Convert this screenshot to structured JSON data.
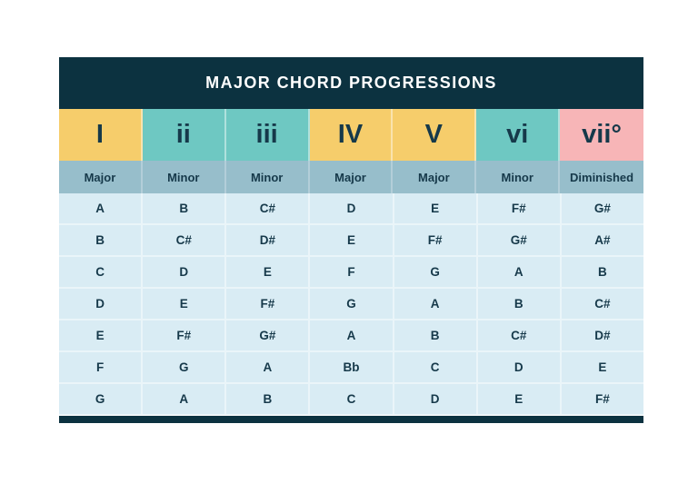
{
  "header": {
    "title": "MAJOR CHORD PROGRESSIONS"
  },
  "colors": {
    "navy": "#0c3240",
    "text": "#16394a",
    "title_text": "#ffffff",
    "yellow": "#f6cd6b",
    "teal": "#6ec8c2",
    "pink": "#f7b5b7",
    "quality_bg": "#97becb",
    "quality_gap": "#b3ced9",
    "cell_bg": "#d9ecf4",
    "cell_gap": "#eaf5f9"
  },
  "columns": [
    {
      "numeral": "I",
      "quality": "Major",
      "color_key": "yellow"
    },
    {
      "numeral": "ii",
      "quality": "Minor",
      "color_key": "teal"
    },
    {
      "numeral": "iii",
      "quality": "Minor",
      "color_key": "teal"
    },
    {
      "numeral": "IV",
      "quality": "Major",
      "color_key": "yellow"
    },
    {
      "numeral": "V",
      "quality": "Major",
      "color_key": "yellow"
    },
    {
      "numeral": "vi",
      "quality": "Minor",
      "color_key": "teal"
    },
    {
      "numeral": "vii°",
      "quality": "Diminished",
      "color_key": "pink"
    }
  ],
  "rows": [
    [
      "A",
      "B",
      "C#",
      "D",
      "E",
      "F#",
      "G#"
    ],
    [
      "B",
      "C#",
      "D#",
      "E",
      "F#",
      "G#",
      "A#"
    ],
    [
      "C",
      "D",
      "E",
      "F",
      "G",
      "A",
      "B"
    ],
    [
      "D",
      "E",
      "F#",
      "G",
      "A",
      "B",
      "C#"
    ],
    [
      "E",
      "F#",
      "G#",
      "A",
      "B",
      "C#",
      "D#"
    ],
    [
      "F",
      "G",
      "A",
      "Bb",
      "C",
      "D",
      "E"
    ],
    [
      "G",
      "A",
      "B",
      "C",
      "D",
      "E",
      "F#"
    ]
  ],
  "chart_data": {
    "type": "table",
    "title": "MAJOR CHORD PROGRESSIONS",
    "columns": [
      "I",
      "ii",
      "iii",
      "IV",
      "V",
      "vi",
      "vii°"
    ],
    "qualities": [
      "Major",
      "Minor",
      "Minor",
      "Major",
      "Major",
      "Minor",
      "Diminished"
    ],
    "rows": [
      [
        "A",
        "B",
        "C#",
        "D",
        "E",
        "F#",
        "G#"
      ],
      [
        "B",
        "C#",
        "D#",
        "E",
        "F#",
        "G#",
        "A#"
      ],
      [
        "C",
        "D",
        "E",
        "F",
        "G",
        "A",
        "B"
      ],
      [
        "D",
        "E",
        "F#",
        "G",
        "A",
        "B",
        "C#"
      ],
      [
        "E",
        "F#",
        "G#",
        "A",
        "B",
        "C#",
        "D#"
      ],
      [
        "F",
        "G",
        "A",
        "Bb",
        "C",
        "D",
        "E"
      ],
      [
        "G",
        "A",
        "B",
        "C",
        "D",
        "E",
        "F#"
      ]
    ],
    "legend_position": "none",
    "grid": true
  }
}
